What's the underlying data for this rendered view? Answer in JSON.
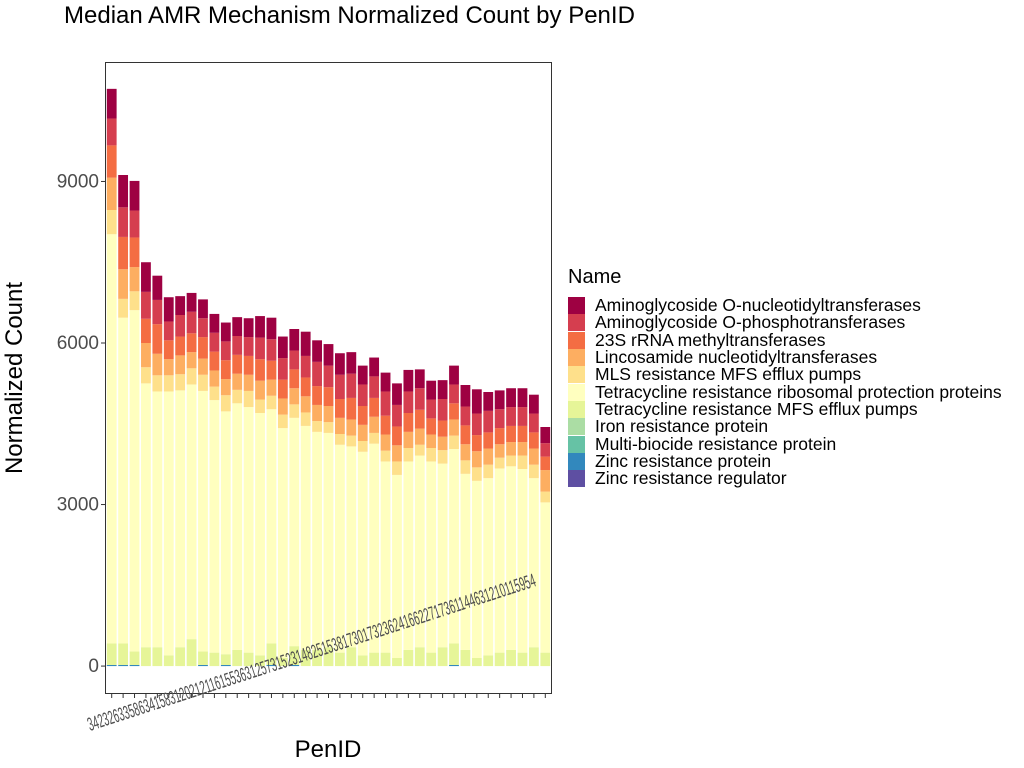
{
  "chart_data": {
    "type": "bar",
    "stacked": true,
    "title": "Median AMR Mechanism Normalized Count by PenID",
    "xlabel": "PenID",
    "ylabel": "Normalized Count",
    "ylim": [
      -500,
      11200
    ],
    "yticks": [
      0,
      3000,
      6000,
      9000
    ],
    "grid": false,
    "legend": {
      "title": "Name",
      "placement": "right"
    },
    "categories": [
      "34",
      "23",
      "26",
      "33",
      "38",
      "21",
      "9",
      "5",
      "11",
      "20",
      "8",
      "1",
      "13",
      "12",
      "15",
      "31",
      "36",
      "2",
      "25",
      "3",
      "18",
      "7",
      "10",
      "22",
      "4",
      "14",
      "19",
      "16",
      "30",
      "17",
      "32",
      "6",
      "24",
      "35",
      "27",
      "29",
      "28",
      "37",
      "40"
    ],
    "tick_label_text": "3423263358634158312021211615536312573152314825153817301732362416622717361144631210115954",
    "series": [
      {
        "name": "Aminoglycoside O-nucleotidyltransferases",
        "color": "#9E0142",
        "values": [
          550,
          600,
          550,
          550,
          450,
          450,
          350,
          350,
          350,
          350,
          350,
          350,
          350,
          400,
          400,
          400,
          400,
          450,
          400,
          400,
          400,
          400,
          350,
          350,
          350,
          400,
          400,
          350,
          350,
          350,
          350,
          400,
          450,
          350,
          350,
          350,
          350,
          350,
          300
        ]
      },
      {
        "name": "Aminoglycoside O-phosphotransferases",
        "color": "#D53E4F",
        "values": [
          500,
          550,
          500,
          500,
          450,
          350,
          400,
          400,
          350,
          350,
          350,
          350,
          350,
          400,
          400,
          400,
          350,
          400,
          450,
          400,
          450,
          450,
          400,
          400,
          450,
          400,
          400,
          400,
          350,
          400,
          350,
          350,
          400,
          400,
          350,
          350,
          350,
          350,
          250
        ]
      },
      {
        "name": "23S rRNA methyltransferases",
        "color": "#F46D43",
        "values": [
          600,
          600,
          550,
          450,
          550,
          350,
          350,
          350,
          400,
          350,
          350,
          350,
          350,
          400,
          350,
          350,
          350,
          350,
          350,
          350,
          350,
          400,
          350,
          350,
          350,
          350,
          350,
          350,
          300,
          300,
          300,
          350,
          300,
          300,
          300,
          300,
          300,
          300,
          250
        ]
      },
      {
        "name": "Lincosamide nucleotidyltransferases",
        "color": "#FDAE61",
        "values": [
          600,
          550,
          450,
          450,
          400,
          300,
          350,
          300,
          300,
          300,
          300,
          300,
          300,
          350,
          300,
          300,
          300,
          300,
          300,
          300,
          300,
          300,
          300,
          300,
          300,
          300,
          300,
          300,
          250,
          250,
          300,
          300,
          300,
          300,
          250,
          250,
          250,
          300,
          400
        ]
      },
      {
        "name": "MLS resistance MFS efflux pumps",
        "color": "#FEE08B",
        "values": [
          450,
          350,
          350,
          300,
          300,
          300,
          300,
          300,
          300,
          250,
          300,
          250,
          300,
          250,
          250,
          250,
          250,
          250,
          200,
          200,
          200,
          200,
          200,
          200,
          200,
          250,
          250,
          200,
          250,
          250,
          250,
          250,
          250,
          250,
          200,
          200,
          250,
          250,
          200
        ]
      },
      {
        "name": "Tetracycline resistance ribosomal protection proteins",
        "color": "#FFFFBF",
        "values": [
          7600,
          6050,
          6340,
          4900,
          4750,
          4900,
          4770,
          4730,
          4840,
          4690,
          4510,
          4580,
          4560,
          4500,
          4350,
          4270,
          4240,
          4160,
          4050,
          3980,
          3860,
          3730,
          3780,
          3880,
          3550,
          3400,
          3500,
          3560,
          3550,
          3410,
          3610,
          3270,
          3290,
          3290,
          3420,
          3410,
          3410,
          3140,
          2790
        ]
      },
      {
        "name": "Tetracycline resistance MFS efflux pumps",
        "color": "#E6F598",
        "values": [
          400,
          400,
          250,
          350,
          350,
          200,
          350,
          500,
          250,
          250,
          200,
          300,
          250,
          200,
          400,
          150,
          350,
          300,
          300,
          350,
          250,
          350,
          200,
          250,
          250,
          150,
          300,
          350,
          250,
          350,
          400,
          300,
          150,
          200,
          250,
          300,
          250,
          350,
          250
        ]
      },
      {
        "name": "Iron resistance protein",
        "color": "#ABDDA4",
        "values": [
          0,
          0,
          0,
          0,
          0,
          0,
          0,
          0,
          0,
          0,
          0,
          0,
          0,
          0,
          0,
          0,
          0,
          0,
          0,
          0,
          0,
          0,
          0,
          0,
          0,
          0,
          0,
          0,
          0,
          0,
          0,
          0,
          0,
          0,
          0,
          0,
          0,
          0,
          0
        ]
      },
      {
        "name": "Multi-biocide resistance protein",
        "color": "#66C2A5",
        "values": [
          0,
          0,
          0,
          0,
          0,
          0,
          0,
          0,
          0,
          0,
          0,
          0,
          0,
          0,
          0,
          0,
          0,
          0,
          0,
          0,
          0,
          0,
          0,
          0,
          0,
          0,
          0,
          0,
          0,
          0,
          0,
          0,
          0,
          0,
          0,
          0,
          0,
          0,
          0
        ]
      },
      {
        "name": "Zinc resistance protein",
        "color": "#3288BD",
        "values": [
          20,
          20,
          20,
          0,
          0,
          0,
          0,
          0,
          20,
          0,
          20,
          0,
          0,
          0,
          20,
          0,
          20,
          0,
          0,
          0,
          0,
          0,
          0,
          0,
          0,
          0,
          0,
          0,
          0,
          0,
          20,
          0,
          0,
          0,
          0,
          0,
          0,
          0,
          0
        ]
      },
      {
        "name": "Zinc resistance regulator",
        "color": "#5E4FA2",
        "values": [
          0,
          0,
          0,
          0,
          0,
          0,
          0,
          0,
          0,
          0,
          0,
          0,
          0,
          0,
          0,
          0,
          0,
          0,
          0,
          0,
          0,
          0,
          0,
          0,
          0,
          0,
          0,
          0,
          0,
          0,
          0,
          0,
          0,
          0,
          0,
          0,
          0,
          0,
          0
        ]
      }
    ]
  }
}
